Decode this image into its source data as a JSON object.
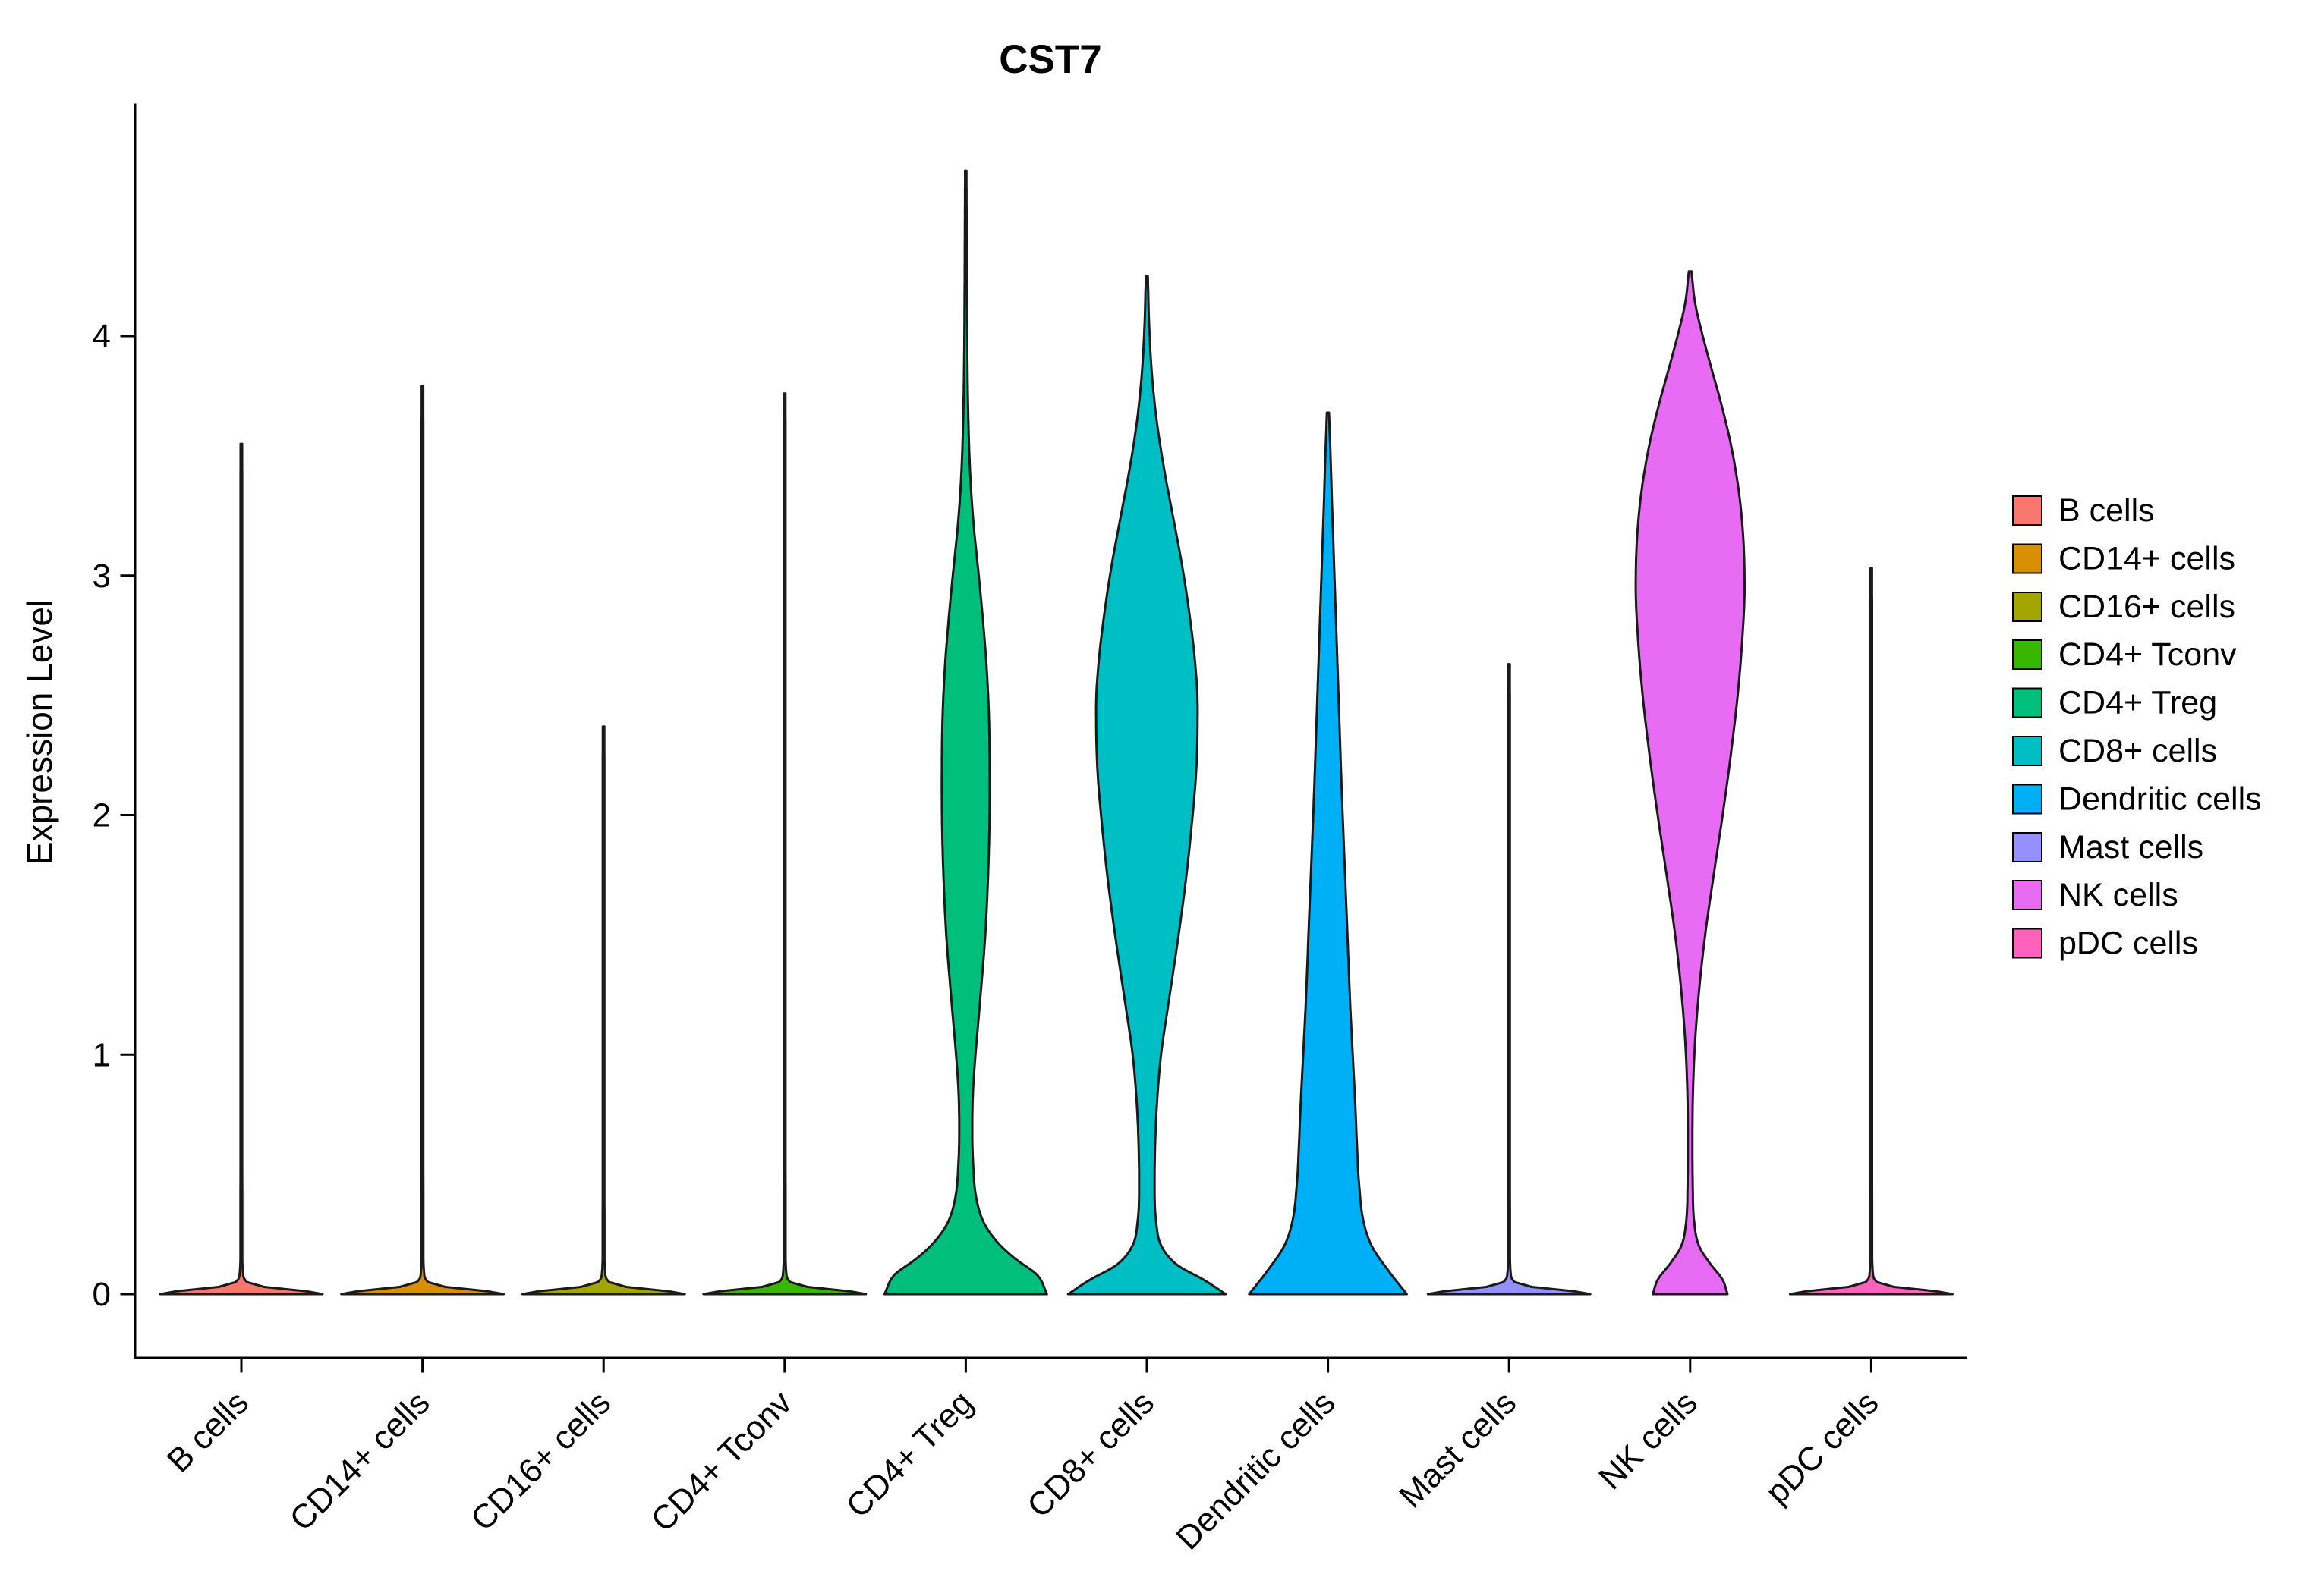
{
  "chart_data": {
    "type": "violin",
    "title": "CST7",
    "ylabel": "Expression Level",
    "ylim": [
      0,
      4.96
    ],
    "yticks": [
      0,
      1,
      2,
      3,
      4
    ],
    "x_tick_angle": 45,
    "grid": false,
    "legend_position": "right",
    "outline_color": "#1a1a1a",
    "categories": [
      "B cells",
      "CD14+ cells",
      "CD16+ cells",
      "CD4+ Tconv",
      "CD4+ Treg",
      "CD8+ cells",
      "Dendritic cells",
      "Mast cells",
      "NK cells",
      "pDC cells"
    ],
    "legend": [
      {
        "label": "B cells",
        "color": "#F8766D"
      },
      {
        "label": "CD14+ cells",
        "color": "#D89000"
      },
      {
        "label": "CD16+ cells",
        "color": "#A3A500"
      },
      {
        "label": "CD4+ Tconv",
        "color": "#39B600"
      },
      {
        "label": "CD4+ Treg",
        "color": "#00BF7D"
      },
      {
        "label": "CD8+ cells",
        "color": "#00BFC4"
      },
      {
        "label": "Dendritic cells",
        "color": "#00B0F6"
      },
      {
        "label": "Mast cells",
        "color": "#9590FF"
      },
      {
        "label": "NK cells",
        "color": "#E76BF3"
      },
      {
        "label": "pDC cells",
        "color": "#FF62BC"
      }
    ],
    "series": [
      {
        "name": "B cells",
        "color": "#F8766D",
        "max_expression": 3.55,
        "profile": [
          [
            0,
            1
          ],
          [
            0.012,
            0.8
          ],
          [
            0.03,
            0.28
          ],
          [
            0.05,
            0.07
          ],
          [
            0.09,
            0.02
          ],
          [
            0.18,
            0.011
          ],
          [
            3.4,
            0.01
          ],
          [
            3.55,
            0.009
          ]
        ]
      },
      {
        "name": "CD14+ cells",
        "color": "#D89000",
        "max_expression": 3.79,
        "profile": [
          [
            0,
            1
          ],
          [
            0.012,
            0.8
          ],
          [
            0.03,
            0.28
          ],
          [
            0.05,
            0.07
          ],
          [
            0.09,
            0.02
          ],
          [
            0.18,
            0.011
          ],
          [
            3.6,
            0.01
          ],
          [
            3.79,
            0.009
          ]
        ]
      },
      {
        "name": "CD16+ cells",
        "color": "#A3A500",
        "max_expression": 2.37,
        "profile": [
          [
            0,
            1
          ],
          [
            0.012,
            0.8
          ],
          [
            0.03,
            0.28
          ],
          [
            0.05,
            0.07
          ],
          [
            0.09,
            0.02
          ],
          [
            0.18,
            0.011
          ],
          [
            2.2,
            0.01
          ],
          [
            2.37,
            0.009
          ]
        ]
      },
      {
        "name": "CD4+ Tconv",
        "color": "#39B600",
        "max_expression": 3.76,
        "profile": [
          [
            0,
            1
          ],
          [
            0.012,
            0.8
          ],
          [
            0.03,
            0.28
          ],
          [
            0.05,
            0.07
          ],
          [
            0.09,
            0.02
          ],
          [
            0.18,
            0.011
          ],
          [
            3.6,
            0.01
          ],
          [
            3.76,
            0.009
          ]
        ]
      },
      {
        "name": "CD4+ Treg",
        "color": "#00BF7D",
        "max_expression": 4.69,
        "profile": [
          [
            0,
            1
          ],
          [
            0.08,
            0.88
          ],
          [
            0.15,
            0.6
          ],
          [
            0.22,
            0.38
          ],
          [
            0.3,
            0.22
          ],
          [
            0.4,
            0.13
          ],
          [
            0.55,
            0.09
          ],
          [
            0.7,
            0.08
          ],
          [
            0.85,
            0.09
          ],
          [
            1,
            0.12
          ],
          [
            1.2,
            0.17
          ],
          [
            1.5,
            0.24
          ],
          [
            1.8,
            0.28
          ],
          [
            2.1,
            0.295
          ],
          [
            2.35,
            0.29
          ],
          [
            2.6,
            0.26
          ],
          [
            2.8,
            0.215
          ],
          [
            3,
            0.16
          ],
          [
            3.2,
            0.1
          ],
          [
            3.4,
            0.058
          ],
          [
            3.65,
            0.032
          ],
          [
            3.9,
            0.02
          ],
          [
            4.2,
            0.014
          ],
          [
            4.45,
            0.011
          ],
          [
            4.69,
            0.008
          ]
        ]
      },
      {
        "name": "CD8+ cells",
        "color": "#00BFC4",
        "max_expression": 4.25,
        "profile": [
          [
            0,
            0.97
          ],
          [
            0.06,
            0.7
          ],
          [
            0.12,
            0.38
          ],
          [
            0.2,
            0.18
          ],
          [
            0.3,
            0.115
          ],
          [
            0.45,
            0.095
          ],
          [
            0.6,
            0.1
          ],
          [
            0.8,
            0.125
          ],
          [
            1,
            0.175
          ],
          [
            1.2,
            0.26
          ],
          [
            1.45,
            0.37
          ],
          [
            1.7,
            0.47
          ],
          [
            1.95,
            0.55
          ],
          [
            2.2,
            0.61
          ],
          [
            2.45,
            0.625
          ],
          [
            2.65,
            0.59
          ],
          [
            2.85,
            0.52
          ],
          [
            3.05,
            0.43
          ],
          [
            3.25,
            0.32
          ],
          [
            3.45,
            0.21
          ],
          [
            3.65,
            0.12
          ],
          [
            3.85,
            0.06
          ],
          [
            4.05,
            0.028
          ],
          [
            4.25,
            0.012
          ]
        ]
      },
      {
        "name": "Dendritic cells",
        "color": "#00B0F6",
        "max_expression": 3.68,
        "profile": [
          [
            0,
            0.97
          ],
          [
            0.1,
            0.74
          ],
          [
            0.2,
            0.54
          ],
          [
            0.3,
            0.44
          ],
          [
            0.45,
            0.385
          ],
          [
            0.6,
            0.36
          ],
          [
            0.8,
            0.335
          ],
          [
            1,
            0.305
          ],
          [
            1.2,
            0.275
          ],
          [
            1.5,
            0.24
          ],
          [
            1.8,
            0.205
          ],
          [
            2.1,
            0.17
          ],
          [
            2.4,
            0.14
          ],
          [
            2.7,
            0.11
          ],
          [
            2.9,
            0.09
          ],
          [
            3.1,
            0.07
          ],
          [
            3.3,
            0.05
          ],
          [
            3.5,
            0.032
          ],
          [
            3.68,
            0.013
          ]
        ]
      },
      {
        "name": "Mast cells",
        "color": "#9590FF",
        "max_expression": 2.63,
        "profile": [
          [
            0,
            1
          ],
          [
            0.012,
            0.8
          ],
          [
            0.03,
            0.28
          ],
          [
            0.05,
            0.07
          ],
          [
            0.09,
            0.02
          ],
          [
            0.18,
            0.011
          ],
          [
            2.45,
            0.01
          ],
          [
            2.63,
            0.009
          ]
        ]
      },
      {
        "name": "NK cells",
        "color": "#E76BF3",
        "max_expression": 4.27,
        "profile": [
          [
            0,
            0.46
          ],
          [
            0.06,
            0.4
          ],
          [
            0.13,
            0.24
          ],
          [
            0.2,
            0.11
          ],
          [
            0.3,
            0.05
          ],
          [
            0.45,
            0.032
          ],
          [
            0.65,
            0.028
          ],
          [
            0.85,
            0.035
          ],
          [
            1.05,
            0.06
          ],
          [
            1.25,
            0.105
          ],
          [
            1.5,
            0.185
          ],
          [
            1.75,
            0.29
          ],
          [
            2,
            0.4
          ],
          [
            2.25,
            0.5
          ],
          [
            2.5,
            0.585
          ],
          [
            2.75,
            0.645
          ],
          [
            2.95,
            0.67
          ],
          [
            3.15,
            0.655
          ],
          [
            3.35,
            0.6
          ],
          [
            3.55,
            0.5
          ],
          [
            3.72,
            0.38
          ],
          [
            3.88,
            0.25
          ],
          [
            4.02,
            0.14
          ],
          [
            4.14,
            0.06
          ],
          [
            4.27,
            0.016
          ]
        ]
      },
      {
        "name": "pDC cells",
        "color": "#FF62BC",
        "max_expression": 3.03,
        "profile": [
          [
            0,
            1
          ],
          [
            0.012,
            0.8
          ],
          [
            0.03,
            0.28
          ],
          [
            0.05,
            0.07
          ],
          [
            0.09,
            0.02
          ],
          [
            0.18,
            0.011
          ],
          [
            2.85,
            0.01
          ],
          [
            3.03,
            0.009
          ]
        ]
      }
    ]
  }
}
